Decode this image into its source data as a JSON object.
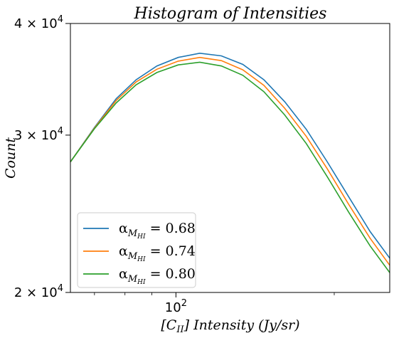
{
  "chart_data": {
    "type": "line",
    "title": "Histogram of Intensities",
    "xlabel": "[C_II] Intensity (Jy/sr)",
    "ylabel": "Count",
    "xscale": "log",
    "yscale": "log",
    "xlim": [
      63,
      255
    ],
    "ylim": [
      20000,
      40000
    ],
    "x_ticks": [
      {
        "value": 100,
        "base": "10",
        "exp": "2"
      }
    ],
    "y_ticks": [
      {
        "value": 20000,
        "mant": "2",
        "base": "10",
        "exp": "4"
      },
      {
        "value": 30000,
        "mant": "3",
        "base": "10",
        "exp": "4"
      },
      {
        "value": 40000,
        "mant": "4",
        "base": "10",
        "exp": "4"
      }
    ],
    "legend_position": "lower-left",
    "legend_prefix": "α",
    "legend_sub": "M",
    "legend_subsub": "HI",
    "legend_eq": " = ",
    "x": [
      63,
      70,
      77,
      84,
      92,
      101,
      111,
      122,
      134,
      147,
      161,
      177,
      194,
      213,
      234,
      255
    ],
    "series": [
      {
        "label": "0.68",
        "color": "#1f77b4",
        "values": [
          28000,
          30600,
          32950,
          34600,
          35850,
          36650,
          37050,
          36800,
          36000,
          34600,
          32700,
          30450,
          28000,
          25600,
          23400,
          21850
        ]
      },
      {
        "label": "0.74",
        "color": "#ff7f0e",
        "values": [
          28000,
          30550,
          32800,
          34400,
          35550,
          36300,
          36650,
          36350,
          35500,
          34100,
          32150,
          29900,
          27500,
          25100,
          23000,
          21450
        ]
      },
      {
        "label": "0.80",
        "color": "#2ca02c",
        "values": [
          28000,
          30500,
          32600,
          34150,
          35250,
          35950,
          36200,
          35850,
          35000,
          33550,
          31600,
          29350,
          26950,
          24600,
          22550,
          21050
        ]
      }
    ]
  }
}
